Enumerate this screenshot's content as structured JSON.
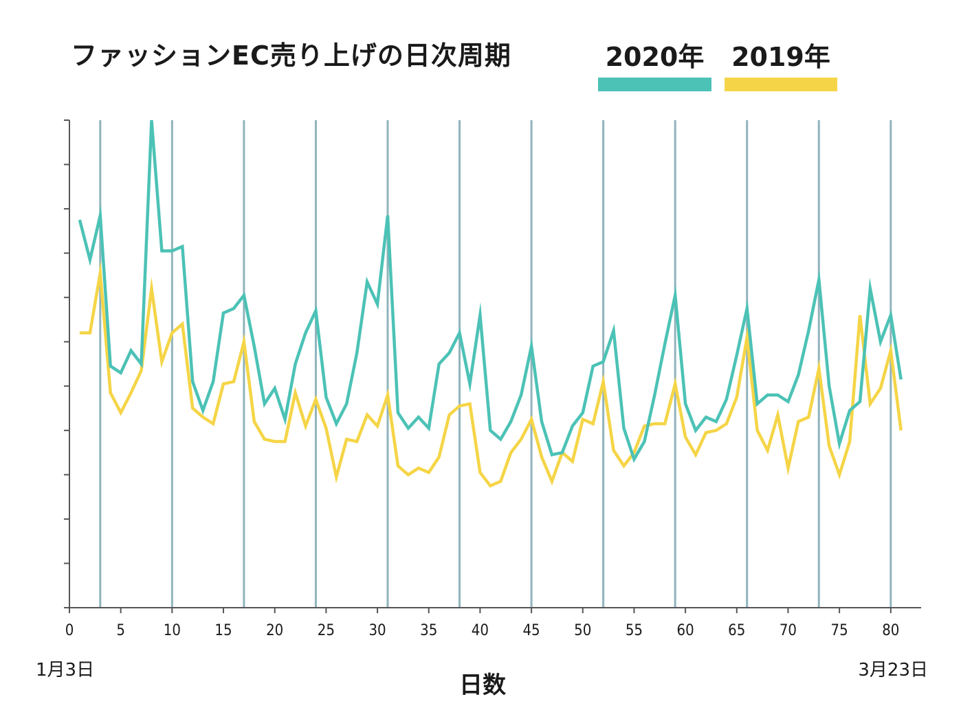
{
  "chart_data": {
    "type": "line",
    "title": "ファッションEC売り上げの日次周期",
    "xlabel": "日数",
    "ylabel": "",
    "start_date_label": "1月3日",
    "end_date_label": "3月23日",
    "xlim": [
      0,
      83
    ],
    "ylim": [
      0,
      110
    ],
    "xticks": [
      0,
      5,
      10,
      15,
      20,
      25,
      30,
      35,
      40,
      45,
      50,
      55,
      60,
      65,
      70,
      75,
      80
    ],
    "yticks": [
      0,
      10,
      20,
      30,
      40,
      50,
      60,
      70,
      80,
      90,
      100,
      110
    ],
    "week_markers": [
      3,
      10,
      17,
      24,
      31,
      38,
      45,
      52,
      59,
      66,
      73,
      80
    ],
    "grid": false,
    "series": [
      {
        "name": "2020年",
        "color": "#4cc2b6",
        "x": [
          1,
          2,
          3,
          4,
          5,
          6,
          7,
          8,
          9,
          10,
          11,
          12,
          13,
          14,
          15,
          16,
          17,
          18,
          19,
          20,
          21,
          22,
          23,
          24,
          25,
          26,
          27,
          28,
          29,
          30,
          31,
          32,
          33,
          34,
          35,
          36,
          37,
          38,
          39,
          40,
          41,
          42,
          43,
          44,
          45,
          46,
          47,
          48,
          49,
          50,
          51,
          52,
          53,
          54,
          55,
          56,
          57,
          58,
          59,
          60,
          61,
          62,
          63,
          64,
          65,
          66,
          67,
          68,
          69,
          70,
          71,
          72,
          73,
          74,
          75,
          76,
          77,
          78,
          79,
          80,
          81
        ],
        "values": [
          87.5,
          78.5,
          88.5,
          54.5,
          53.0,
          58.0,
          55.0,
          110.0,
          80.5,
          80.5,
          81.5,
          51.0,
          44.5,
          51.0,
          66.5,
          67.5,
          70.5,
          59.0,
          46.0,
          49.5,
          42.5,
          55.0,
          62.0,
          67.0,
          47.5,
          41.5,
          46.0,
          57.5,
          73.5,
          68.5,
          88.5,
          44.0,
          40.5,
          43.0,
          40.5,
          55.0,
          57.5,
          62.0,
          50.5,
          66.0,
          40.0,
          38.0,
          42.0,
          48.0,
          59.0,
          42.0,
          34.5,
          35.0,
          41.0,
          44.0,
          54.5,
          55.5,
          62.5,
          40.5,
          33.5,
          37.5,
          48.0,
          59.5,
          70.5,
          46.0,
          40.0,
          43.0,
          42.0,
          47.0,
          57.0,
          67.5,
          46.0,
          48.0,
          48.0,
          46.5,
          52.5,
          62.5,
          74.0,
          50.0,
          37.0,
          44.5,
          46.5,
          72.0,
          60.0,
          66.0,
          51.5
        ]
      },
      {
        "name": "2019年",
        "color": "#f5d547",
        "x": [
          1,
          2,
          3,
          4,
          5,
          6,
          7,
          8,
          9,
          10,
          11,
          12,
          13,
          14,
          15,
          16,
          17,
          18,
          19,
          20,
          21,
          22,
          23,
          24,
          25,
          26,
          27,
          28,
          29,
          30,
          31,
          32,
          33,
          34,
          35,
          36,
          37,
          38,
          39,
          40,
          41,
          42,
          43,
          44,
          45,
          46,
          47,
          48,
          49,
          50,
          51,
          52,
          53,
          54,
          55,
          56,
          57,
          58,
          59,
          60,
          61,
          62,
          63,
          64,
          65,
          66,
          67,
          68,
          69,
          70,
          71,
          72,
          73,
          74,
          75,
          76,
          77,
          78,
          79,
          80,
          81
        ],
        "values": [
          62.0,
          62.0,
          75.5,
          48.5,
          44.0,
          48.5,
          53.5,
          72.0,
          55.5,
          62.0,
          64.0,
          45.0,
          43.0,
          41.5,
          50.5,
          51.0,
          60.0,
          42.0,
          38.0,
          37.5,
          37.5,
          48.5,
          41.0,
          47.0,
          40.5,
          29.5,
          38.0,
          37.5,
          43.5,
          41.0,
          48.0,
          32.0,
          30.0,
          31.5,
          30.5,
          34.0,
          43.5,
          45.5,
          46.0,
          30.5,
          27.5,
          28.5,
          35.0,
          38.0,
          42.5,
          34.0,
          28.5,
          35.0,
          33.0,
          42.5,
          41.5,
          51.0,
          35.5,
          32.0,
          35.0,
          41.0,
          41.5,
          41.5,
          50.5,
          38.5,
          34.5,
          39.5,
          40.0,
          41.5,
          47.5,
          61.0,
          40.0,
          35.5,
          43.5,
          31.5,
          42.0,
          43.0,
          54.0,
          36.5,
          30.0,
          37.5,
          66.0,
          46.0,
          49.5,
          58.0,
          40.0
        ]
      }
    ]
  },
  "legend": [
    {
      "label": "2020年",
      "color": "#4cc2b6"
    },
    {
      "label": "2019年",
      "color": "#f5d547"
    }
  ],
  "colors": {
    "week_marker": "#90b3bc",
    "axis": "#555555"
  }
}
